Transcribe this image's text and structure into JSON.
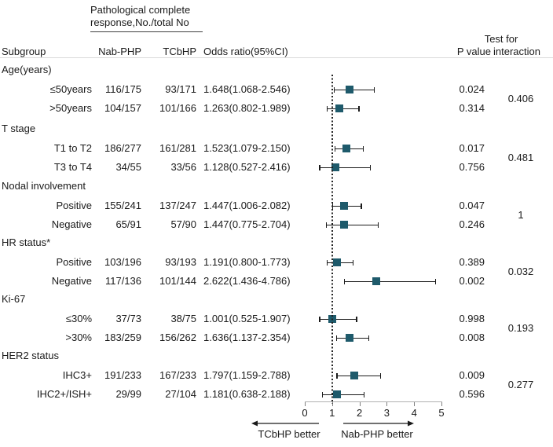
{
  "header": {
    "col_group_line1": "Pathological complete",
    "col_group_line2": "response,No./total No",
    "subgroup": "Subgroup",
    "nab": "Nab-PHP",
    "tcb": "TCbHP",
    "odds_ratio": "Odds ratio(95%CI)",
    "p_value": "P value",
    "interaction_line1": "Test for",
    "interaction_line2": "interaction"
  },
  "colors": {
    "marker": "#1e5a6b",
    "ci_line": "#1a1a1a",
    "axis_line": "#b0b0b0",
    "text": "#1a1a1a"
  },
  "chart_data": {
    "type": "forest",
    "x_range": [
      0,
      5
    ],
    "xlabel_ticks": [
      0,
      1,
      2,
      3,
      4,
      5
    ],
    "reference_value": 1,
    "left_direction_label": "TCbHP better",
    "right_direction_label": "Nab-PHP better",
    "groups": [
      {
        "label": "Age(years)",
        "interaction_p": "0.406",
        "rows": [
          {
            "subgroup": "≤50years",
            "nab": "116/175",
            "tcb": "93/171",
            "or_text": "1.648(1.068-2.546)",
            "or": 1.648,
            "lo": 1.068,
            "hi": 2.546,
            "p": "0.024"
          },
          {
            "subgroup": ">50years",
            "nab": "104/157",
            "tcb": "101/166",
            "or_text": "1.263(0.802-1.989)",
            "or": 1.263,
            "lo": 0.802,
            "hi": 1.989,
            "p": "0.314"
          }
        ]
      },
      {
        "label": "T stage",
        "interaction_p": "0.481",
        "rows": [
          {
            "subgroup": "T1 to T2",
            "nab": "186/277",
            "tcb": "161/281",
            "or_text": "1.523(1.079-2.150)",
            "or": 1.523,
            "lo": 1.079,
            "hi": 2.15,
            "p": "0.017"
          },
          {
            "subgroup": "T3 to T4",
            "nab": "34/55",
            "tcb": "33/56",
            "or_text": "1.128(0.527-2.416)",
            "or": 1.128,
            "lo": 0.527,
            "hi": 2.416,
            "p": "0.756"
          }
        ]
      },
      {
        "label": "Nodal involvement",
        "interaction_p": "1",
        "rows": [
          {
            "subgroup": "Positive",
            "nab": "155/241",
            "tcb": "137/247",
            "or_text": "1.447(1.006-2.082)",
            "or": 1.447,
            "lo": 1.006,
            "hi": 2.082,
            "p": "0.047"
          },
          {
            "subgroup": "Negative",
            "nab": "65/91",
            "tcb": "57/90",
            "or_text": "1.447(0.775-2.704)",
            "or": 1.447,
            "lo": 0.775,
            "hi": 2.704,
            "p": "0.246"
          }
        ]
      },
      {
        "label": "HR status*",
        "interaction_p": "0.032",
        "rows": [
          {
            "subgroup": "Positive",
            "nab": "103/196",
            "tcb": "93/193",
            "or_text": "1.191(0.800-1.773)",
            "or": 1.191,
            "lo": 0.8,
            "hi": 1.773,
            "p": "0.389"
          },
          {
            "subgroup": "Negative",
            "nab": "117/136",
            "tcb": "101/144",
            "or_text": "2.622(1.436-4.786)",
            "or": 2.622,
            "lo": 1.436,
            "hi": 4.786,
            "p": "0.002"
          }
        ]
      },
      {
        "label": "Ki-67",
        "interaction_p": "0.193",
        "rows": [
          {
            "subgroup": "≤30%",
            "nab": "37/73",
            "tcb": "38/75",
            "or_text": "1.001(0.525-1.907)",
            "or": 1.001,
            "lo": 0.525,
            "hi": 1.907,
            "p": "0.998"
          },
          {
            "subgroup": ">30%",
            "nab": "183/259",
            "tcb": "156/262",
            "or_text": "1.636(1.137-2.354)",
            "or": 1.636,
            "lo": 1.137,
            "hi": 2.354,
            "p": "0.008"
          }
        ]
      },
      {
        "label": "HER2 status",
        "interaction_p": "0.277",
        "rows": [
          {
            "subgroup": "IHC3+",
            "nab": "191/233",
            "tcb": "167/233",
            "or_text": "1.797(1.159-2.788)",
            "or": 1.797,
            "lo": 1.159,
            "hi": 2.788,
            "p": "0.009"
          },
          {
            "subgroup": "IHC2+/ISH+",
            "nab": "29/99",
            "tcb": "27/104",
            "or_text": "1.181(0.638-2.188)",
            "or": 1.181,
            "lo": 0.638,
            "hi": 2.188,
            "p": "0.596"
          }
        ]
      }
    ]
  }
}
